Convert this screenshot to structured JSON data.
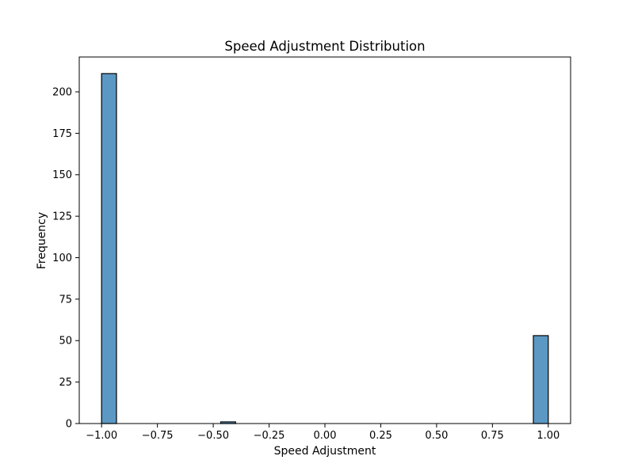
{
  "chart_data": {
    "type": "bar",
    "title": "Speed Adjustment Distribution",
    "xlabel": "Speed Adjustment",
    "ylabel": "Frequency",
    "xlim": [
      -1.1,
      1.1
    ],
    "ylim": [
      0,
      221
    ],
    "x_ticks": [
      -1.0,
      -0.75,
      -0.5,
      -0.25,
      0.0,
      0.25,
      0.5,
      0.75,
      1.0
    ],
    "x_tick_labels": [
      "−1.00",
      "−0.75",
      "−0.50",
      "−0.25",
      "0.00",
      "0.25",
      "0.50",
      "0.75",
      "1.00"
    ],
    "y_ticks": [
      0,
      25,
      50,
      75,
      100,
      125,
      150,
      175,
      200
    ],
    "y_tick_labels": [
      "0",
      "25",
      "50",
      "75",
      "100",
      "125",
      "150",
      "175",
      "200"
    ],
    "bins": [
      {
        "x0": -1.0,
        "x1": -0.9333,
        "count": 211
      },
      {
        "x0": -0.4667,
        "x1": -0.4,
        "count": 1
      },
      {
        "x0": 0.9333,
        "x1": 1.0,
        "count": 53
      }
    ],
    "grid": false,
    "colors": {
      "bar_fill": "#5c98c4",
      "bar_edge": "#000000",
      "axis": "#000000"
    }
  }
}
